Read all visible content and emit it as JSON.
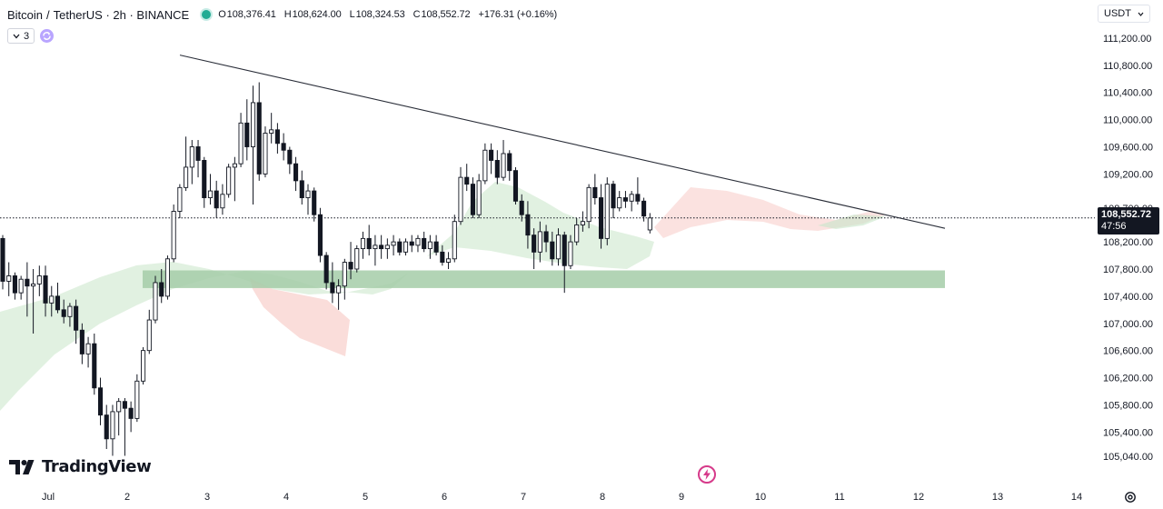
{
  "header": {
    "symbol": "Bitcoin",
    "separator": "/",
    "quote": "TetherUS · 2h · BINANCE",
    "ohlc": [
      {
        "label": "O",
        "value": "108,376.41"
      },
      {
        "label": "H",
        "value": "108,624.00"
      },
      {
        "label": "L",
        "value": "108,324.53"
      },
      {
        "label": "C",
        "value": "108,552.72"
      },
      {
        "label": "",
        "value": "+176.31 (+0.16%)"
      }
    ],
    "indicator_count": "3"
  },
  "currency": "USDT",
  "last_price": {
    "price": "108,552.72",
    "countdown": "47:56"
  },
  "logo": "TradingView",
  "colors": {
    "bull": "#ffffff",
    "bear": "#131722",
    "wick": "#131722",
    "cloud_green": "#c8e6c9",
    "cloud_red": "#f8cfcb",
    "zone": "#a5cda8",
    "trendline": "#2a2e39",
    "last_price_line": "#131722",
    "accent_live": "#22ab94",
    "flash": "#d63a8a"
  },
  "chart_data": {
    "type": "candlestick",
    "title": "Bitcoin / TetherUS · 2h · BINANCE",
    "ylim": [
      104800,
      111500
    ],
    "x_ticks": [
      "Jul",
      "2",
      "3",
      "4",
      "5",
      "6",
      "7",
      "8",
      "9",
      "10",
      "11",
      "12",
      "13",
      "14"
    ],
    "y_ticks": [
      "111,200.00",
      "110,800.00",
      "110,400.00",
      "110,000.00",
      "109,600.00",
      "109,200.00",
      "108,700.00",
      "108,200.00",
      "107,800.00",
      "107,400.00",
      "107,000.00",
      "106,600.00",
      "106,200.00",
      "105,800.00",
      "105,400.00",
      "105,040.00"
    ],
    "y_tick_values": [
      111200,
      110800,
      110400,
      110000,
      109600,
      109200,
      108700,
      108200,
      107800,
      107400,
      107000,
      106600,
      106200,
      105800,
      105400,
      105040
    ],
    "candles": [
      [
        108250,
        108300,
        107500,
        107620
      ],
      [
        107620,
        107900,
        107400,
        107700
      ],
      [
        107700,
        107750,
        107350,
        107450
      ],
      [
        107450,
        107700,
        107350,
        107650
      ],
      [
        107650,
        107900,
        107100,
        107550
      ],
      [
        107550,
        107800,
        106850,
        107580
      ],
      [
        107580,
        107850,
        107400,
        107700
      ],
      [
        107700,
        107850,
        107100,
        107300
      ],
      [
        107300,
        107550,
        107100,
        107400
      ],
      [
        107400,
        107600,
        107150,
        107200
      ],
      [
        107200,
        107350,
        107000,
        107100
      ],
      [
        107100,
        107300,
        106950,
        107250
      ],
      [
        107250,
        107350,
        106700,
        106900
      ],
      [
        106900,
        107000,
        106400,
        106550
      ],
      [
        106550,
        106800,
        106350,
        106700
      ],
      [
        106700,
        106850,
        105950,
        106050
      ],
      [
        106050,
        106200,
        105500,
        105650
      ],
      [
        105650,
        105800,
        105150,
        105300
      ],
      [
        105300,
        105800,
        105050,
        105700
      ],
      [
        105700,
        105900,
        105350,
        105850
      ],
      [
        105850,
        105900,
        105050,
        105750
      ],
      [
        105750,
        105850,
        105400,
        105600
      ],
      [
        105600,
        106250,
        105550,
        106150
      ],
      [
        106150,
        106650,
        106100,
        106600
      ],
      [
        106600,
        107200,
        106550,
        107050
      ],
      [
        107050,
        107700,
        107000,
        107600
      ],
      [
        107600,
        107800,
        107300,
        107400
      ],
      [
        107400,
        108000,
        107350,
        107950
      ],
      [
        107950,
        108750,
        107900,
        108650
      ],
      [
        108650,
        109050,
        108550,
        109000
      ],
      [
        109000,
        109750,
        108950,
        109300
      ],
      [
        109300,
        109700,
        109050,
        109600
      ],
      [
        109600,
        109700,
        109150,
        109400
      ],
      [
        109400,
        109450,
        108700,
        108850
      ],
      [
        108850,
        109200,
        108750,
        108950
      ],
      [
        108950,
        109100,
        108550,
        108700
      ],
      [
        108700,
        109050,
        108600,
        108900
      ],
      [
        108900,
        109350,
        108850,
        109300
      ],
      [
        109300,
        109450,
        108800,
        109350
      ],
      [
        109350,
        110100,
        109300,
        109950
      ],
      [
        109950,
        110300,
        109400,
        109600
      ],
      [
        109600,
        110500,
        108750,
        110250
      ],
      [
        110250,
        110550,
        109100,
        109200
      ],
      [
        109200,
        109900,
        109150,
        109800
      ],
      [
        109800,
        110100,
        109650,
        109850
      ],
      [
        109850,
        109950,
        109500,
        109650
      ],
      [
        109650,
        109800,
        109400,
        109550
      ],
      [
        109550,
        109600,
        109200,
        109350
      ],
      [
        109350,
        109450,
        108950,
        109100
      ],
      [
        109100,
        109250,
        108750,
        108850
      ],
      [
        108850,
        109050,
        108600,
        108950
      ],
      [
        108950,
        109000,
        108500,
        108600
      ],
      [
        108600,
        108700,
        107900,
        108000
      ],
      [
        108000,
        108050,
        107500,
        107600
      ],
      [
        107600,
        107900,
        107300,
        107450
      ],
      [
        107450,
        107650,
        107200,
        107550
      ],
      [
        107550,
        107950,
        107350,
        107900
      ],
      [
        107900,
        108200,
        107650,
        107800
      ],
      [
        107800,
        108150,
        107750,
        108100
      ],
      [
        108100,
        108350,
        107950,
        108250
      ],
      [
        108250,
        108450,
        108000,
        108100
      ],
      [
        108100,
        108300,
        107850,
        108150
      ],
      [
        108150,
        108300,
        107950,
        108100
      ],
      [
        108100,
        108250,
        107950,
        108150
      ],
      [
        108150,
        108300,
        108000,
        108200
      ],
      [
        108200,
        108250,
        108000,
        108050
      ],
      [
        108050,
        108250,
        108000,
        108200
      ],
      [
        108200,
        108300,
        108050,
        108150
      ],
      [
        108150,
        108300,
        108050,
        108250
      ],
      [
        108250,
        108350,
        108050,
        108100
      ],
      [
        108100,
        108300,
        107950,
        108200
      ],
      [
        108200,
        108300,
        108000,
        108050
      ],
      [
        108050,
        108150,
        107850,
        107900
      ],
      [
        107900,
        108050,
        107800,
        107950
      ],
      [
        107950,
        108600,
        107900,
        108500
      ],
      [
        108500,
        109300,
        108450,
        109150
      ],
      [
        109150,
        109350,
        108950,
        109050
      ],
      [
        109050,
        109150,
        108550,
        108600
      ],
      [
        108600,
        109200,
        108550,
        109100
      ],
      [
        109100,
        109650,
        109050,
        109550
      ],
      [
        109550,
        109650,
        109200,
        109400
      ],
      [
        109400,
        109550,
        109050,
        109150
      ],
      [
        109150,
        109700,
        109100,
        109500
      ],
      [
        109500,
        109550,
        109100,
        109250
      ],
      [
        109250,
        109300,
        108750,
        108800
      ],
      [
        108800,
        108900,
        108500,
        108600
      ],
      [
        108600,
        108800,
        108100,
        108300
      ],
      [
        108300,
        108400,
        107800,
        108050
      ],
      [
        108050,
        108500,
        107900,
        108350
      ],
      [
        108350,
        108450,
        108050,
        108200
      ],
      [
        108200,
        108350,
        107850,
        107950
      ],
      [
        107950,
        108400,
        107850,
        108300
      ],
      [
        108300,
        108350,
        107450,
        107850
      ],
      [
        107850,
        108300,
        107800,
        108200
      ],
      [
        108200,
        108550,
        108150,
        108450
      ],
      [
        108450,
        108650,
        108350,
        108500
      ],
      [
        108500,
        109050,
        108400,
        109000
      ],
      [
        109000,
        109200,
        108750,
        108850
      ],
      [
        108850,
        109050,
        108100,
        108250
      ],
      [
        108250,
        109150,
        108150,
        109050
      ],
      [
        109050,
        109100,
        108550,
        108700
      ],
      [
        108700,
        108950,
        108650,
        108850
      ],
      [
        108850,
        108950,
        108700,
        108800
      ],
      [
        108800,
        108950,
        108650,
        108900
      ],
      [
        108900,
        109150,
        108750,
        108800
      ],
      [
        108800,
        108850,
        108500,
        108580
      ],
      [
        108376,
        108624,
        108324,
        108552
      ]
    ],
    "trendline": [
      {
        "x": "Jul 3 early",
        "y": 110950
      },
      {
        "x": "Jul 12 late",
        "y": 108400
      }
    ],
    "support_zone": {
      "low": 107520,
      "high": 107780
    }
  }
}
